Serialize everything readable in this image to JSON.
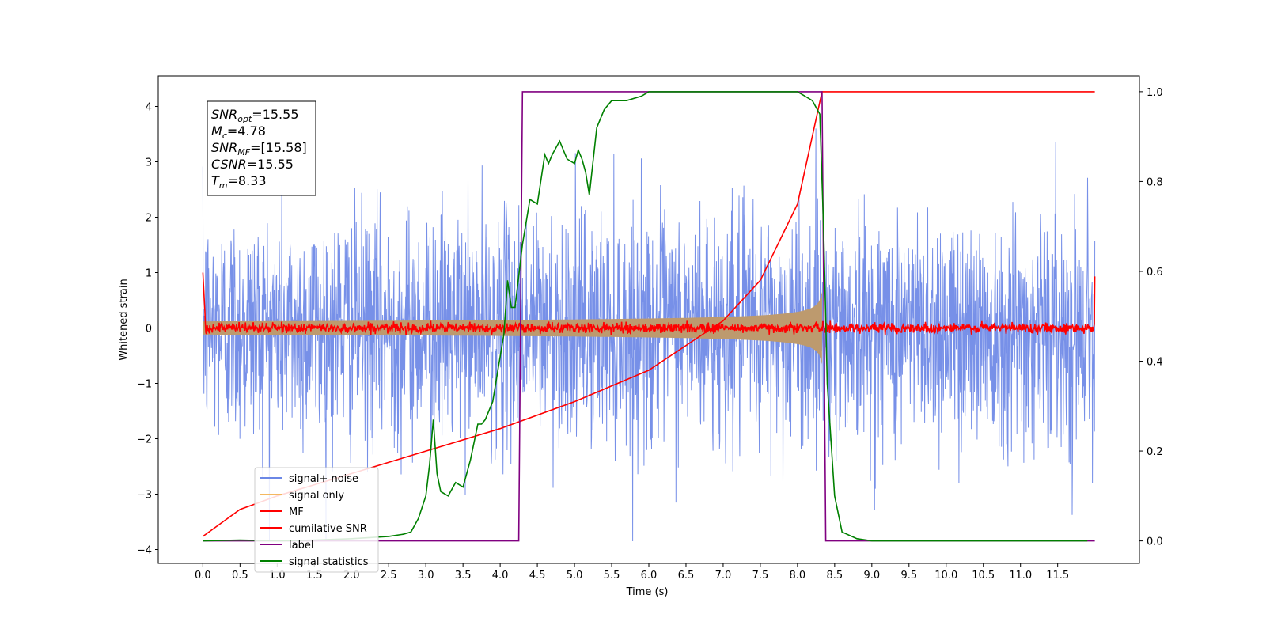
{
  "chart_data": {
    "type": "line",
    "xlabel": "Time (s)",
    "ylabel": "Whitened strain",
    "xlim": [
      -0.6,
      12.6
    ],
    "ylim_left": [
      -4.25,
      4.55
    ],
    "ylim_right": [
      -0.05,
      1.035
    ],
    "x_ticks": [
      0.0,
      0.5,
      1.0,
      1.5,
      2.0,
      2.5,
      3.0,
      3.5,
      4.0,
      4.5,
      5.0,
      5.5,
      6.0,
      6.5,
      7.0,
      7.5,
      8.0,
      8.5,
      9.0,
      9.5,
      10.0,
      10.5,
      11.0,
      11.5
    ],
    "x_tick_labels": [
      "0.0",
      "0.5",
      "1.0",
      "1.5",
      "2.0",
      "2.5",
      "3.0",
      "3.5",
      "4.0",
      "4.5",
      "5.0",
      "5.5",
      "6.0",
      "6.5",
      "7.0",
      "7.5",
      "8.0",
      "8.5",
      "9.0",
      "9.5",
      "10.0",
      "10.5",
      "11.0",
      "11.5"
    ],
    "y_left_ticks": [
      -4,
      -3,
      -2,
      -1,
      0,
      1,
      2,
      3,
      4
    ],
    "y_left_tick_labels": [
      "−4",
      "−3",
      "−2",
      "−1",
      "0",
      "1",
      "2",
      "3",
      "4"
    ],
    "y_right_ticks": [
      0.0,
      0.2,
      0.4,
      0.6,
      0.8,
      1.0
    ],
    "y_right_tick_labels": [
      "0.0",
      "0.2",
      "0.4",
      "0.6",
      "0.8",
      "1.0"
    ],
    "grid": false,
    "legend_position": "lower-left",
    "series": [
      {
        "name": "signal+ noise",
        "axis": "left",
        "color": "#6b87e6",
        "x_range": [
          0.0,
          12.0
        ],
        "noise_sigma": 1.0
      },
      {
        "name": "signal only",
        "axis": "left",
        "color": "#f4b860",
        "x_range": [
          0.0,
          8.33
        ],
        "envelope_start": 0.12,
        "envelope_end": 1.1
      },
      {
        "name": "MF",
        "axis": "left",
        "color": "#ff0000",
        "x_range": [
          0.0,
          12.0
        ],
        "level": 0.0,
        "edge_value": 1.0
      },
      {
        "name": "cumilative SNR",
        "axis": "right",
        "color": "#ff0000",
        "x": [
          0.0,
          0.5,
          1.0,
          2.0,
          3.0,
          4.0,
          5.0,
          6.0,
          7.0,
          7.5,
          8.0,
          8.33,
          12.0
        ],
        "y": [
          0.01,
          0.07,
          0.1,
          0.15,
          0.2,
          0.25,
          0.31,
          0.38,
          0.49,
          0.58,
          0.75,
          1.0,
          1.0
        ]
      },
      {
        "name": "label",
        "axis": "right",
        "color": "#800080",
        "x": [
          0.0,
          4.25,
          4.3,
          8.33,
          8.38,
          12.0
        ],
        "y": [
          0.0,
          0.0,
          1.0,
          1.0,
          0.0,
          0.0
        ]
      },
      {
        "name": "signal statistics",
        "axis": "right",
        "color": "#008000",
        "x": [
          0.0,
          0.5,
          1.0,
          1.5,
          2.0,
          2.5,
          2.7,
          2.8,
          2.9,
          3.0,
          3.05,
          3.1,
          3.15,
          3.2,
          3.3,
          3.4,
          3.5,
          3.6,
          3.7,
          3.75,
          3.8,
          3.9,
          4.0,
          4.05,
          4.1,
          4.15,
          4.2,
          4.3,
          4.4,
          4.5,
          4.6,
          4.65,
          4.7,
          4.8,
          4.9,
          5.0,
          5.05,
          5.1,
          5.15,
          5.2,
          5.3,
          5.4,
          5.5,
          5.7,
          5.9,
          6.0,
          6.5,
          7.0,
          7.5,
          7.8,
          8.0,
          8.1,
          8.2,
          8.3,
          8.35,
          8.4,
          8.5,
          8.6,
          8.8,
          9.0,
          10.0,
          11.0,
          11.9
        ],
        "y": [
          0.0,
          0.002,
          0.0,
          0.002,
          0.005,
          0.01,
          0.015,
          0.02,
          0.05,
          0.1,
          0.17,
          0.27,
          0.15,
          0.11,
          0.1,
          0.13,
          0.12,
          0.18,
          0.26,
          0.26,
          0.27,
          0.31,
          0.41,
          0.46,
          0.58,
          0.52,
          0.52,
          0.66,
          0.76,
          0.75,
          0.86,
          0.84,
          0.86,
          0.89,
          0.85,
          0.84,
          0.87,
          0.85,
          0.82,
          0.77,
          0.92,
          0.96,
          0.98,
          0.98,
          0.99,
          1.0,
          1.0,
          1.0,
          1.0,
          1.0,
          1.0,
          0.99,
          0.98,
          0.95,
          0.7,
          0.35,
          0.1,
          0.02,
          0.005,
          0.0,
          0.0,
          0.0,
          0.0
        ]
      }
    ],
    "annotation": {
      "lines": [
        {
          "base": "SNR",
          "sub": "opt",
          "value": "=15.55"
        },
        {
          "base": "M",
          "sub": "c",
          "value": "=4.78"
        },
        {
          "base": "SNR",
          "sub": "MF",
          "value": "=[15.58]"
        },
        {
          "base": "CSNR",
          "sub": "",
          "value": "=15.55"
        },
        {
          "base": "T",
          "sub": "m",
          "value": "=8.33"
        }
      ]
    }
  }
}
